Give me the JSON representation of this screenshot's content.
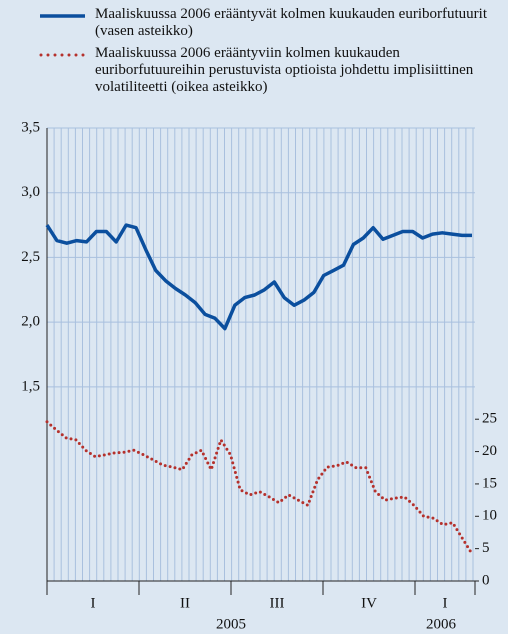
{
  "chart_data": {
    "type": "line",
    "series": [
      {
        "name": "Maaliskuussa 2006 erääntyvät kolmen kuukauden euriborfutuurit (vasen asteikko)",
        "color": "#0b4f9e",
        "style": "solid",
        "values": [
          2.75,
          2.63,
          2.61,
          2.63,
          2.62,
          2.7,
          2.7,
          2.62,
          2.75,
          2.73,
          2.56,
          2.4,
          2.32,
          2.26,
          2.21,
          2.15,
          2.06,
          2.03,
          1.95,
          2.13,
          2.19,
          2.21,
          2.25,
          2.31,
          2.19,
          2.13,
          2.17,
          2.23,
          2.36,
          2.4,
          2.44,
          2.6,
          2.65,
          2.73,
          2.64,
          2.67,
          2.7,
          2.7,
          2.65,
          2.68,
          2.69,
          2.68,
          2.67,
          2.67
        ]
      },
      {
        "name": "Maaliskuussa 2006 erääntyviin kolmen kuukauden euriborfutuureihin perustuvista optioista johdettu implisiittinen volatiliteetti (oikea asteikko)",
        "color": "#b5312c",
        "style": "dotted",
        "axis": "y2",
        "values": [
          24.6,
          23.3,
          22.1,
          21.8,
          20.2,
          19.2,
          19.5,
          19.8,
          19.9,
          20.2,
          19.5,
          18.7,
          17.9,
          17.6,
          17.2,
          19.5,
          20.2,
          17.2,
          21.8,
          19.5,
          14.1,
          13.3,
          13.8,
          13.0,
          12.1,
          13.3,
          12.5,
          11.7,
          15.6,
          17.6,
          17.8,
          18.4,
          17.5,
          17.5,
          13.8,
          12.5,
          12.8,
          13.0,
          11.7,
          10.0,
          9.7,
          8.7,
          9.0,
          6.6,
          4.2
        ]
      }
    ],
    "quarters": [
      "I",
      "II",
      "III",
      "IV",
      "I"
    ],
    "years": [
      "2005",
      "2006"
    ],
    "ylim": [
      0,
      3.5
    ],
    "yticks": [
      {
        "value": 1.5,
        "label": "1,5"
      },
      {
        "value": 2.0,
        "label": "2,0"
      },
      {
        "value": 2.5,
        "label": "2,5"
      },
      {
        "value": 3.0,
        "label": "3,0"
      },
      {
        "value": 3.5,
        "label": "3,5"
      }
    ],
    "y2lim": [
      0,
      70
    ],
    "y2ticks": [
      0,
      5,
      10,
      15,
      20,
      25
    ],
    "grid": true
  }
}
